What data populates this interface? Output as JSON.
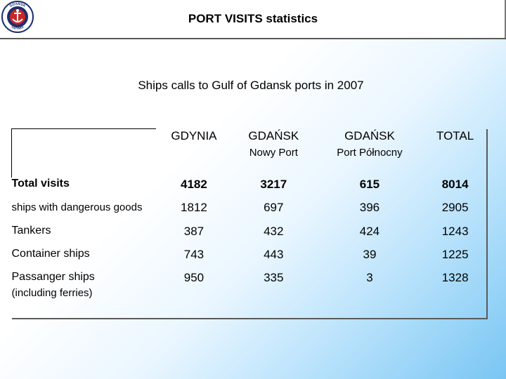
{
  "header": {
    "title": "PORT VISITS statistics",
    "logo_icon": "ship-anchor-emblem-icon",
    "logo_text_top": "GDAŃSK",
    "logo_text_bottom": "GDYNIA"
  },
  "subtitle": "Ships calls to Gulf of Gdansk ports in 2007",
  "table": {
    "columns": [
      {
        "name": "GDYNIA",
        "sub": ""
      },
      {
        "name": "GDAŃSK",
        "sub": "Nowy Port"
      },
      {
        "name": "GDAŃSK",
        "sub": "Port Północny"
      },
      {
        "name": "TOTAL",
        "sub": ""
      }
    ],
    "rows": [
      {
        "label": "Total visits",
        "sub": "",
        "values": [
          "4182",
          "3217",
          "615",
          "8014"
        ]
      },
      {
        "label": "ships with dangerous goods",
        "sub": "",
        "values": [
          "1812",
          "697",
          "396",
          "2905"
        ]
      },
      {
        "label": "Tankers",
        "sub": "",
        "values": [
          "387",
          "432",
          "424",
          "1243"
        ]
      },
      {
        "label": "Container ships",
        "sub": "",
        "values": [
          "743",
          "443",
          "39",
          "1225"
        ]
      },
      {
        "label": "Passanger ships",
        "sub": "(including ferries)",
        "values": [
          "950",
          "335",
          "3",
          "1328"
        ]
      }
    ]
  },
  "colors": {
    "background_gradient_end": "#79c6f3",
    "logo_navy": "#1c2f6e",
    "logo_red": "#c62828"
  }
}
